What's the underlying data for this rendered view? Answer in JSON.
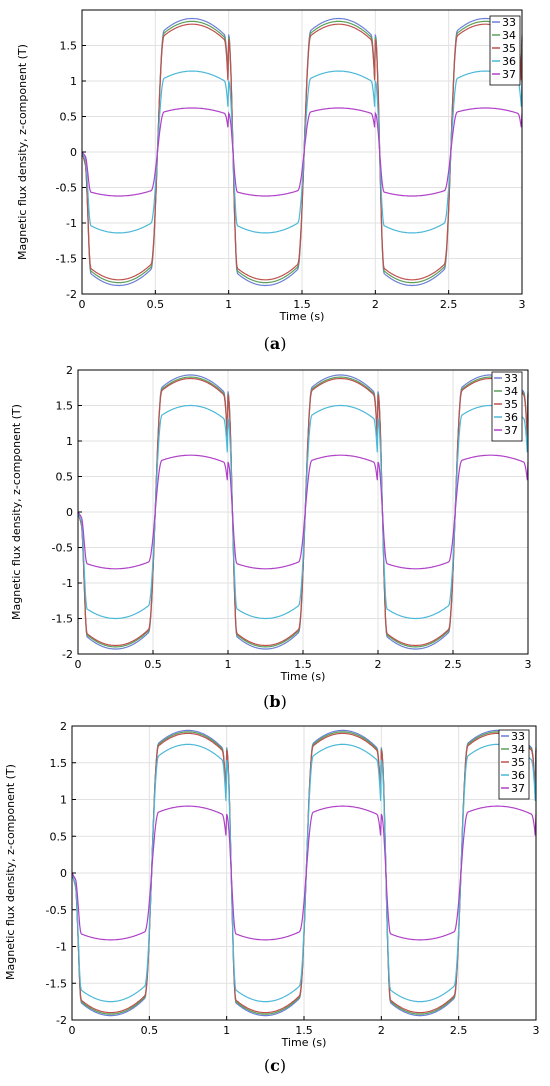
{
  "chart_data": [
    {
      "type": "line",
      "caption_letter": "a",
      "xlabel": "Time (s)",
      "ylabel": "Magnetic flux density, z-component (T)",
      "xlim": [
        0,
        3
      ],
      "ylim": [
        -2,
        2
      ],
      "xticks": [
        0,
        0.5,
        1,
        1.5,
        2,
        2.5,
        3
      ],
      "xtick_labels": [
        "0",
        "0.5",
        "1",
        "1.5",
        "2",
        "2.5",
        "3"
      ],
      "yticks": [
        -2,
        -1.5,
        -1,
        -0.5,
        0,
        0.5,
        1,
        1.5
      ],
      "ytick_labels": [
        "-2",
        "-1.5",
        "-1",
        "-0.5",
        "0",
        "0.5",
        "1",
        "1.5"
      ],
      "grid": true,
      "legend_position": "top-right",
      "series": [
        {
          "name": "33",
          "color": "#6b7fd7",
          "amplitude": 1.88
        },
        {
          "name": "34",
          "color": "#5aa05a",
          "amplitude": 1.84
        },
        {
          "name": "35",
          "color": "#c0504d",
          "amplitude": 1.8
        },
        {
          "name": "36",
          "color": "#4bb8d8",
          "amplitude": 1.14
        },
        {
          "name": "37",
          "color": "#b040c8",
          "amplitude": 0.62
        }
      ]
    },
    {
      "type": "line",
      "caption_letter": "b",
      "xlabel": "Time (s)",
      "ylabel": "Magnetic flux density, z-component (T)",
      "xlim": [
        0,
        3
      ],
      "ylim": [
        -2,
        2
      ],
      "xticks": [
        0,
        0.5,
        1,
        1.5,
        2,
        2.5,
        3
      ],
      "xtick_labels": [
        "0",
        "0.5",
        "1",
        "1.5",
        "2",
        "2.5",
        "3"
      ],
      "yticks": [
        -2,
        -1.5,
        -1,
        -0.5,
        0,
        0.5,
        1,
        1.5,
        2
      ],
      "ytick_labels": [
        "-2",
        "-1.5",
        "-1",
        "-0.5",
        "0",
        "0.5",
        "1",
        "1.5",
        "2"
      ],
      "grid": true,
      "legend_position": "top-right",
      "series": [
        {
          "name": "33",
          "color": "#6b7fd7",
          "amplitude": 1.93
        },
        {
          "name": "34",
          "color": "#5aa05a",
          "amplitude": 1.9
        },
        {
          "name": "35",
          "color": "#c0504d",
          "amplitude": 1.88
        },
        {
          "name": "36",
          "color": "#4bb8d8",
          "amplitude": 1.5
        },
        {
          "name": "37",
          "color": "#b040c8",
          "amplitude": 0.8
        }
      ]
    },
    {
      "type": "line",
      "caption_letter": "c",
      "xlabel": "Time (s)",
      "ylabel": "Magnetic flux density, z-component (T)",
      "xlim": [
        0,
        3
      ],
      "ylim": [
        -2,
        2
      ],
      "xticks": [
        0,
        0.5,
        1,
        1.5,
        2,
        2.5,
        3
      ],
      "xtick_labels": [
        "0",
        "0.5",
        "1",
        "1.5",
        "2",
        "2.5",
        "3"
      ],
      "yticks": [
        -2,
        -1.5,
        -1,
        -0.5,
        0,
        0.5,
        1,
        1.5,
        2
      ],
      "ytick_labels": [
        "-2",
        "-1.5",
        "-1",
        "-0.5",
        "0",
        "0.5",
        "1",
        "1.5",
        "2"
      ],
      "grid": true,
      "legend_position": "top-right",
      "series": [
        {
          "name": "33",
          "color": "#6b7fd7",
          "amplitude": 1.94
        },
        {
          "name": "34",
          "color": "#5aa05a",
          "amplitude": 1.92
        },
        {
          "name": "35",
          "color": "#c0504d",
          "amplitude": 1.9
        },
        {
          "name": "36",
          "color": "#4bb8d8",
          "amplitude": 1.75
        },
        {
          "name": "37",
          "color": "#b040c8",
          "amplitude": 0.91
        }
      ]
    }
  ]
}
